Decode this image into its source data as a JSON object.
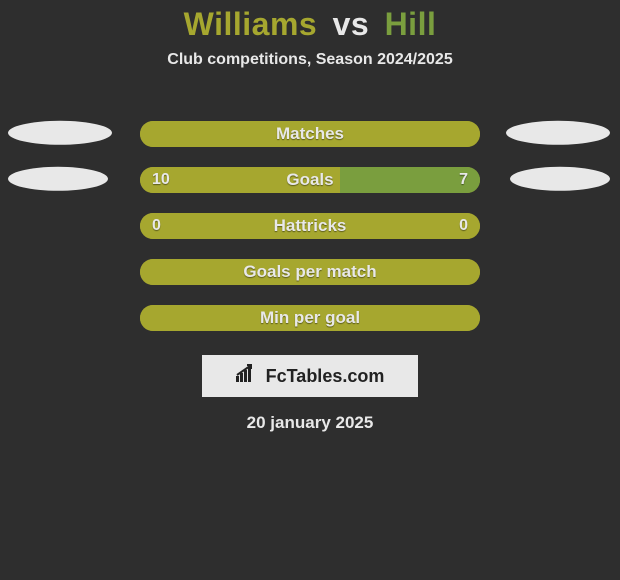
{
  "background_color": "#2e2e2e",
  "title": {
    "player1": "Williams",
    "vs": "vs",
    "player2": "Hill",
    "fontsize": 32,
    "color_player1": "#a6a72f",
    "color_vs": "#e8e8e8",
    "color_player2": "#7a9e3e"
  },
  "subtitle": {
    "text": "Club competitions, Season 2024/2025",
    "fontsize": 16,
    "color": "#e8e8e8"
  },
  "ellipse_colors": {
    "left": "#e8e8e8",
    "right": "#e8e8e8"
  },
  "ellipse_size": {
    "width": 104,
    "height": 24
  },
  "bar": {
    "track_color": "#a6a72f",
    "fill_color_left": "#a6a72f",
    "fill_color_right": "#7a9e3e",
    "label_color": "#e8e8e8",
    "value_color": "#e8e8e8"
  },
  "rows": [
    {
      "label": "Matches",
      "show_ellipses": true,
      "ellipse_width": 104,
      "left_value": "",
      "right_value": "",
      "left_pct": 100,
      "right_pct": 0
    },
    {
      "label": "Goals",
      "show_ellipses": true,
      "ellipse_width": 100,
      "left_value": "10",
      "right_value": "7",
      "left_pct": 58.8,
      "right_pct": 41.2
    },
    {
      "label": "Hattricks",
      "show_ellipses": false,
      "ellipse_width": 0,
      "left_value": "0",
      "right_value": "0",
      "left_pct": 100,
      "right_pct": 0
    },
    {
      "label": "Goals per match",
      "show_ellipses": false,
      "ellipse_width": 0,
      "left_value": "",
      "right_value": "",
      "left_pct": 100,
      "right_pct": 0
    },
    {
      "label": "Min per goal",
      "show_ellipses": false,
      "ellipse_width": 0,
      "left_value": "",
      "right_value": "",
      "left_pct": 100,
      "right_pct": 0
    }
  ],
  "logo": {
    "background": "#e8e8e8",
    "text": "FcTables.com",
    "text_color": "#222222",
    "icon_color": "#222222"
  },
  "date": {
    "text": "20 january 2025",
    "fontsize": 17,
    "color": "#e8e8e8"
  }
}
